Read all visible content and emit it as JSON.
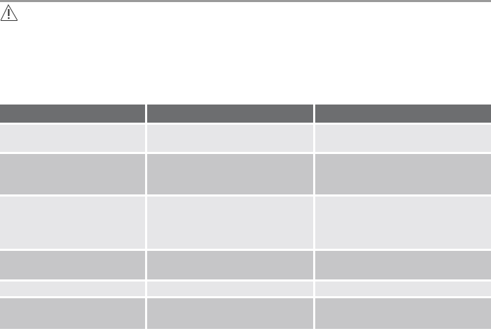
{
  "colors": {
    "header": "#6d6e70",
    "row_light": "#e6e6e8",
    "row_dark": "#c6c6c8",
    "rule": "#9a9a9a"
  },
  "warning": {
    "icon": "warning-triangle-icon"
  },
  "table": {
    "headers": [
      "",
      "",
      ""
    ],
    "rows": [
      {
        "shade": "light",
        "cells": [
          "",
          "",
          ""
        ]
      },
      {
        "shade": "dark",
        "cells": [
          "",
          "",
          ""
        ]
      },
      {
        "shade": "light",
        "cells": [
          "",
          "",
          ""
        ]
      },
      {
        "shade": "dark",
        "cells": [
          "",
          "",
          ""
        ]
      },
      {
        "shade": "light",
        "cells": [
          "",
          "",
          ""
        ]
      },
      {
        "shade": "dark",
        "cells": [
          "",
          "",
          ""
        ]
      }
    ]
  }
}
